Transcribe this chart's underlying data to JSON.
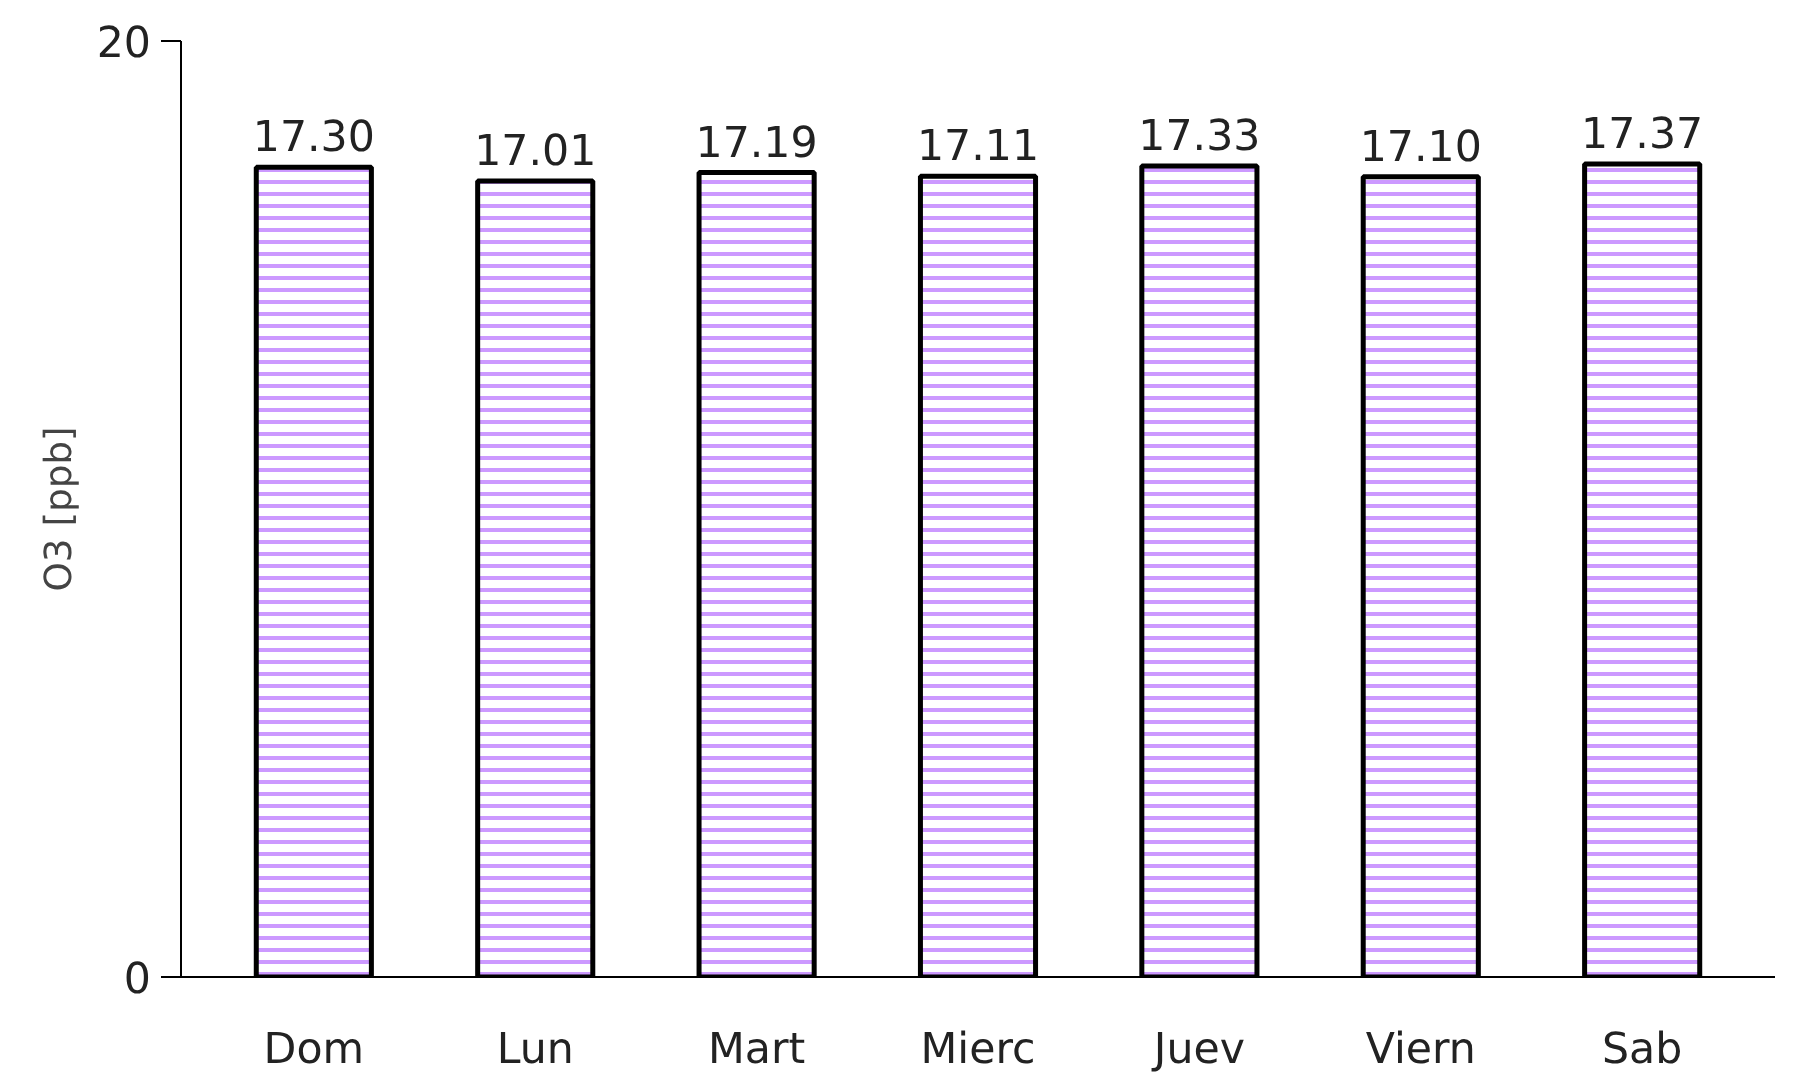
{
  "chart_data": {
    "type": "bar",
    "ylabel": "O3 [ppb]",
    "categories": [
      "Dom",
      "Lun",
      "Mart",
      "Mierc",
      "Juev",
      "Viern",
      "Sab"
    ],
    "values": [
      17.3,
      17.01,
      17.19,
      17.11,
      17.33,
      17.1,
      17.37
    ],
    "value_labels": [
      "17.30",
      "17.01",
      "17.19",
      "17.11",
      "17.33",
      "17.10",
      "17.37"
    ],
    "color": "#cc99ff",
    "ylim": [
      0,
      20
    ],
    "yticks": [
      0,
      20
    ],
    "grid": false
  }
}
